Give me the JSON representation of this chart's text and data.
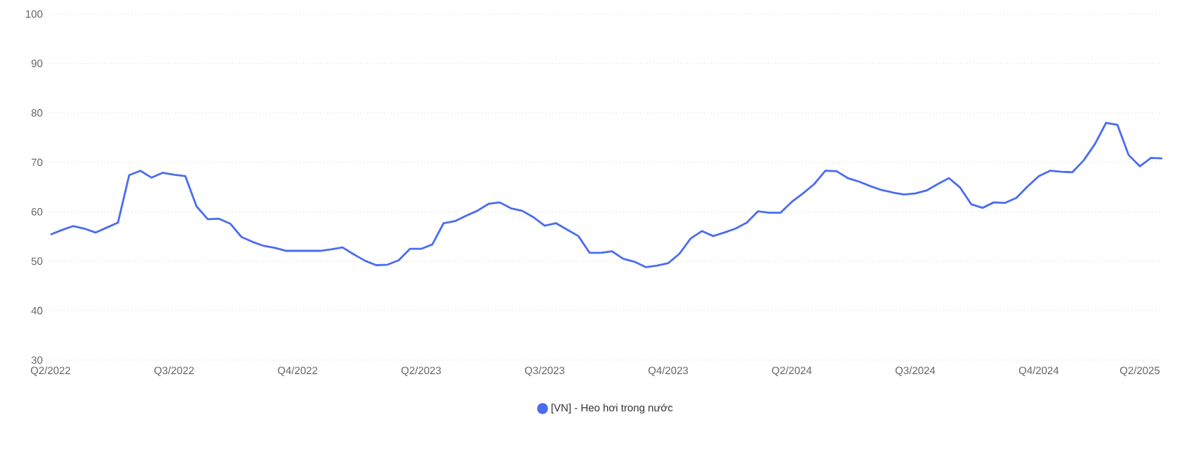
{
  "chart_data": {
    "type": "line",
    "categories": [
      "Q2/2022",
      null,
      null,
      null,
      null,
      null,
      null,
      null,
      null,
      null,
      null,
      "Q3/2022",
      null,
      null,
      null,
      null,
      null,
      null,
      null,
      null,
      null,
      null,
      "Q4/2022",
      null,
      null,
      null,
      null,
      null,
      null,
      null,
      null,
      null,
      null,
      "Q2/2023",
      null,
      null,
      null,
      null,
      null,
      null,
      null,
      null,
      null,
      null,
      "Q3/2023",
      null,
      null,
      null,
      null,
      null,
      null,
      null,
      null,
      null,
      null,
      "Q4/2023",
      null,
      null,
      null,
      null,
      null,
      null,
      null,
      null,
      null,
      null,
      "Q2/2024",
      null,
      null,
      null,
      null,
      null,
      null,
      null,
      null,
      null,
      null,
      "Q3/2024",
      null,
      null,
      null,
      null,
      null,
      null,
      null,
      null,
      null,
      null,
      "Q4/2024",
      null,
      null,
      null,
      null,
      null,
      null,
      null,
      null,
      "Q2/2025",
      null,
      null
    ],
    "series": [
      {
        "name": "[VN] - Heo hơi trong nước",
        "color": "#4a6cf0",
        "values": [
          55.4,
          56.3,
          57.1,
          56.6,
          55.8,
          56.8,
          57.8,
          67.4,
          68.3,
          66.9,
          67.9,
          67.5,
          67.2,
          61.1,
          58.5,
          58.6,
          57.6,
          54.9,
          53.9,
          53.1,
          52.7,
          52.1,
          52.1,
          52.1,
          52.1,
          52.4,
          52.8,
          51.4,
          50.1,
          49.2,
          49.3,
          50.2,
          52.5,
          52.5,
          53.4,
          57.7,
          58.1,
          59.2,
          60.2,
          61.6,
          61.9,
          60.7,
          60.2,
          58.9,
          57.2,
          57.7,
          56.4,
          55.1,
          51.7,
          51.7,
          52.0,
          50.5,
          49.9,
          48.8,
          49.1,
          49.6,
          51.5,
          54.6,
          56.1,
          55.1,
          55.8,
          56.6,
          57.8,
          60.1,
          59.8,
          59.8,
          62.0,
          63.7,
          65.6,
          68.3,
          68.2,
          66.8,
          66.1,
          65.2,
          64.4,
          63.9,
          63.5,
          63.7,
          64.3,
          65.6,
          66.8,
          64.9,
          61.5,
          60.8,
          61.9,
          61.8,
          62.8,
          65.1,
          67.2,
          68.3,
          68.1,
          68.0,
          70.4,
          73.7,
          78.0,
          77.6,
          71.5,
          69.2,
          70.9,
          70.8
        ]
      }
    ],
    "ylim": [
      30,
      100
    ],
    "yticks": [
      30,
      40,
      50,
      60,
      70,
      80,
      90,
      100
    ],
    "grid": "y",
    "legend": "bottom",
    "marker": "none",
    "line_style": "solid"
  }
}
